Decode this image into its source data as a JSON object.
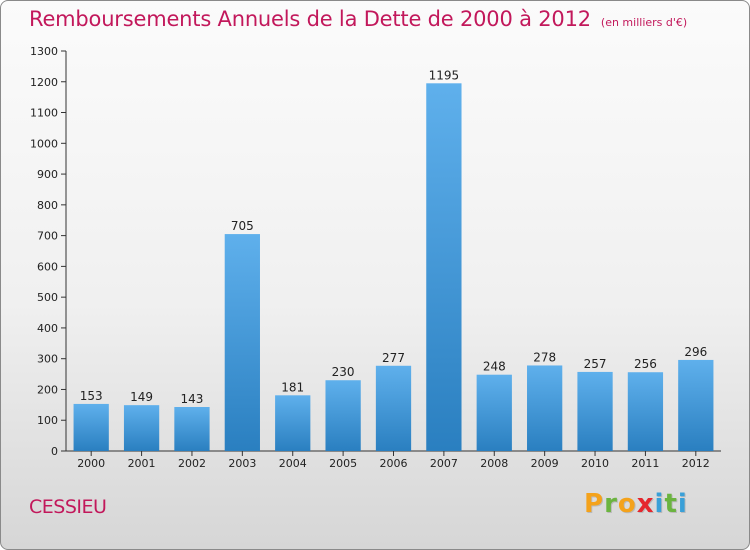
{
  "header": {
    "title": "Remboursements Annuels de la Dette de 2000 à 2012",
    "subtitle": "(en milliers d'€)"
  },
  "footer": {
    "commune": "CESSIEU",
    "logo": [
      "P",
      "r",
      "o",
      "x",
      "i",
      "t",
      "i"
    ]
  },
  "colors": {
    "title": "#c2185b",
    "bar_top": "#5fb0ec",
    "bar_bottom": "#2a7fc0",
    "logo_letters": [
      "#f4a21b",
      "#6bb43f",
      "#f4a21b",
      "#e5262d",
      "#3aa0d8",
      "#6bb43f",
      "#3aa0d8"
    ]
  },
  "chart_data": {
    "type": "bar",
    "categories": [
      "2000",
      "2001",
      "2002",
      "2003",
      "2004",
      "2005",
      "2006",
      "2007",
      "2008",
      "2009",
      "2010",
      "2011",
      "2012"
    ],
    "values": [
      153,
      149,
      143,
      705,
      181,
      230,
      277,
      1195,
      248,
      278,
      257,
      256,
      296
    ],
    "yticks": [
      0,
      100,
      200,
      300,
      400,
      500,
      600,
      700,
      800,
      900,
      1000,
      1100,
      1200,
      1300
    ],
    "ylim": [
      0,
      1300
    ],
    "grid": false,
    "legend": "none"
  }
}
